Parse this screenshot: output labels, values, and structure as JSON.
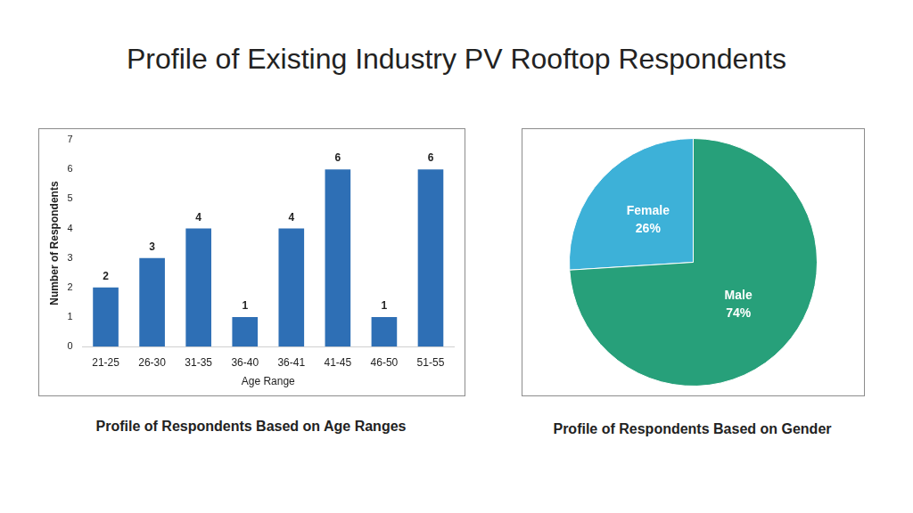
{
  "title": "Profile of Existing Industry PV Rooftop Respondents",
  "chart_data": [
    {
      "type": "bar",
      "title": "Profile of Respondents Based on Age Ranges",
      "x_label": "Age Range",
      "y_label": "Number of Respondents",
      "categories": [
        "21-25",
        "26-30",
        "31-35",
        "36-40",
        "36-41",
        "41-45",
        "46-50",
        "51-55"
      ],
      "values": [
        2,
        3,
        4,
        1,
        4,
        6,
        1,
        6
      ],
      "color": "#2e6fb5",
      "ylim": [
        0,
        7
      ],
      "yticks": [
        0,
        1,
        2,
        3,
        4,
        5,
        6,
        7
      ],
      "grid": false,
      "data_labels": true
    },
    {
      "type": "pie",
      "title": "Profile of Respondents Based on Gender",
      "categories": [
        "Female",
        "Male"
      ],
      "values": [
        26,
        74
      ],
      "value_labels": [
        "26%",
        "74%"
      ],
      "colors": [
        "#3db1d8",
        "#27a07a"
      ],
      "data_labels": true
    }
  ]
}
